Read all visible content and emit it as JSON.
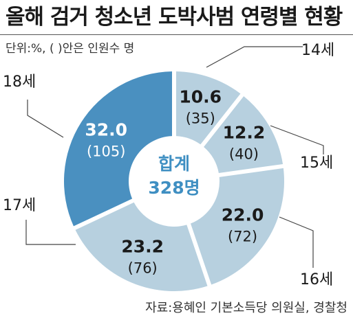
{
  "title": "올해 검거 청소년 도박사범 연령별 현황",
  "unit_note": "단위:%, ( )안은 인원수 명",
  "source": "자료:용혜인 기본소득당 의원실, 경찰청",
  "colors": {
    "highlight": "#4a90c0",
    "segment": "#b7d0df",
    "center_text": "#3f8fc2",
    "leader": "#444444"
  },
  "chart_data": {
    "type": "pie",
    "variant": "donut",
    "center_label": "합계",
    "center_value": "328명",
    "slices": [
      {
        "label": "14세",
        "percent": 10.6,
        "percent_text": "10.6",
        "count": 35,
        "count_text": "(35)"
      },
      {
        "label": "15세",
        "percent": 12.2,
        "percent_text": "12.2",
        "count": 40,
        "count_text": "(40)"
      },
      {
        "label": "16세",
        "percent": 22.0,
        "percent_text": "22.0",
        "count": 72,
        "count_text": "(72)"
      },
      {
        "label": "17세",
        "percent": 23.2,
        "percent_text": "23.2",
        "count": 76,
        "count_text": "(76)"
      },
      {
        "label": "18세",
        "percent": 32.0,
        "percent_text": "32.0",
        "count": 105,
        "count_text": "(105)"
      }
    ],
    "highlight_slice": "18세"
  }
}
